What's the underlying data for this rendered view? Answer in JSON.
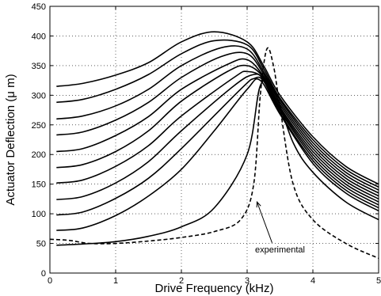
{
  "chart_data": {
    "type": "line",
    "xlabel": "Drive Frequency (kHz)",
    "ylabel": "Actuator Deflection (μ m)",
    "xlim": [
      0,
      5
    ],
    "ylim": [
      0,
      450
    ],
    "xticks": [
      0,
      1,
      2,
      3,
      4,
      5
    ],
    "yticks": [
      0,
      50,
      100,
      150,
      200,
      250,
      300,
      350,
      400,
      450
    ],
    "grid": true,
    "annotations": [
      {
        "text": "experimental",
        "x": 3.5,
        "y": 35,
        "arrow_to": [
          3.15,
          120
        ]
      }
    ],
    "series": [
      {
        "style": "solid",
        "x": [
          0.1,
          0.5,
          1,
          1.5,
          2,
          2.5,
          3,
          3.25,
          3.5,
          4,
          4.5,
          5
        ],
        "y": [
          315,
          320,
          334,
          355,
          390,
          407,
          390,
          350,
          300,
          230,
          180,
          150
        ]
      },
      {
        "style": "solid",
        "x": [
          0.1,
          0.5,
          1,
          1.5,
          2,
          2.5,
          3,
          3.25,
          3.5,
          4,
          4.5,
          5
        ],
        "y": [
          288,
          293,
          310,
          335,
          370,
          392,
          385,
          345,
          295,
          225,
          175,
          145
        ]
      },
      {
        "style": "solid",
        "x": [
          0.1,
          0.5,
          1,
          1.5,
          2,
          2.6,
          3,
          3.25,
          3.5,
          4,
          4.5,
          5
        ],
        "y": [
          260,
          265,
          282,
          310,
          350,
          380,
          378,
          340,
          292,
          220,
          170,
          140
        ]
      },
      {
        "style": "solid",
        "x": [
          0.1,
          0.5,
          1,
          1.5,
          2,
          2.6,
          3,
          3.25,
          3.5,
          4,
          4.5,
          5
        ],
        "y": [
          233,
          238,
          258,
          288,
          330,
          365,
          370,
          336,
          288,
          215,
          165,
          135
        ]
      },
      {
        "style": "solid",
        "x": [
          0.1,
          0.5,
          1,
          1.5,
          2,
          2.7,
          3,
          3.25,
          3.5,
          4,
          4.5,
          5
        ],
        "y": [
          205,
          210,
          232,
          264,
          310,
          352,
          360,
          332,
          284,
          210,
          160,
          130
        ]
      },
      {
        "style": "solid",
        "x": [
          0.1,
          0.5,
          1,
          1.5,
          2,
          2.7,
          3,
          3.25,
          3.5,
          4,
          4.5,
          5
        ],
        "y": [
          178,
          183,
          205,
          240,
          290,
          340,
          350,
          330,
          280,
          205,
          155,
          125
        ]
      },
      {
        "style": "solid",
        "x": [
          0.1,
          0.5,
          1,
          1.5,
          2,
          2.8,
          3,
          3.25,
          3.5,
          4,
          4.5,
          5
        ],
        "y": [
          152,
          157,
          180,
          215,
          265,
          330,
          340,
          328,
          277,
          200,
          150,
          120
        ]
      },
      {
        "style": "solid",
        "x": [
          0.1,
          0.5,
          1,
          1.5,
          2,
          2.8,
          3.1,
          3.25,
          3.5,
          4,
          4.5,
          5
        ],
        "y": [
          124,
          129,
          152,
          188,
          240,
          316,
          335,
          326,
          274,
          195,
          145,
          115
        ]
      },
      {
        "style": "solid",
        "x": [
          0.1,
          0.5,
          1,
          1.5,
          2,
          2.9,
          3.1,
          3.25,
          3.5,
          4,
          4.5,
          5
        ],
        "y": [
          98,
          103,
          126,
          160,
          210,
          310,
          328,
          324,
          270,
          190,
          140,
          110
        ]
      },
      {
        "style": "solid",
        "x": [
          0.1,
          0.5,
          1,
          1.5,
          2,
          2.5,
          3,
          3.2,
          3.5,
          4,
          4.5,
          5
        ],
        "y": [
          72,
          76,
          97,
          130,
          175,
          240,
          310,
          325,
          268,
          185,
          135,
          105
        ]
      },
      {
        "style": "solid",
        "x": [
          0.1,
          0.5,
          1,
          1.5,
          2,
          2.5,
          3,
          3.2,
          3.4,
          3.7,
          4,
          4.5,
          5
        ],
        "y": [
          47,
          49,
          53,
          62,
          78,
          110,
          200,
          316,
          310,
          220,
          170,
          120,
          90
        ]
      },
      {
        "style": "dashed",
        "name": "experimental",
        "x": [
          0,
          0.3,
          0.6,
          1,
          1.5,
          2,
          2.5,
          2.9,
          3.1,
          3.2,
          3.3,
          3.4,
          3.5,
          3.7,
          4,
          4.5,
          5
        ],
        "y": [
          57,
          55,
          50,
          50,
          54,
          60,
          70,
          90,
          150,
          300,
          378,
          350,
          280,
          150,
          90,
          50,
          25
        ]
      }
    ]
  }
}
